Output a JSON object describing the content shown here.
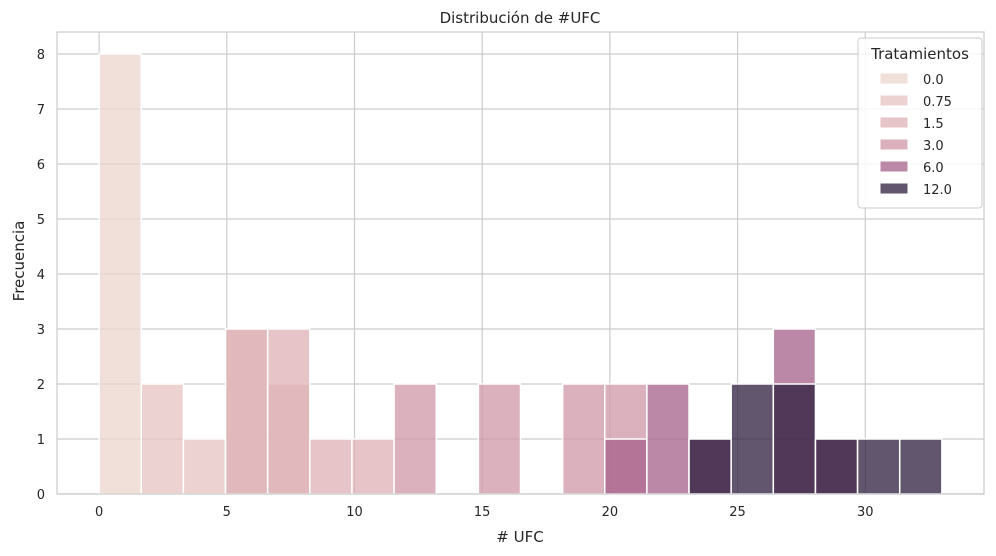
{
  "chart_data": {
    "type": "bar",
    "subtype": "stacked-histogram",
    "title": "Distribución de #UFC",
    "xlabel": "# UFC",
    "ylabel": "Frecuencia",
    "xlim": [
      -1.65,
      34.65
    ],
    "ylim": [
      0,
      8.4
    ],
    "xticks": [
      0,
      5,
      10,
      15,
      20,
      25,
      30
    ],
    "yticks": [
      0,
      1,
      2,
      3,
      4,
      5,
      6,
      7,
      8
    ],
    "grid": true,
    "legend": {
      "title": "Tratamientos",
      "position": "top-right"
    },
    "series": [
      {
        "name": "0.0",
        "color": "#ecd4cd",
        "alpha": 0.75,
        "bins": [
          {
            "x0": 0.0,
            "x1": 1.65,
            "count": 8
          }
        ]
      },
      {
        "name": "0.75",
        "color": "#e6c3c0",
        "alpha": 0.75,
        "bins": [
          {
            "x0": 1.65,
            "x1": 3.3,
            "count": 2
          },
          {
            "x0": 3.3,
            "x1": 4.95,
            "count": 1
          },
          {
            "x0": 4.95,
            "x1": 6.6,
            "count": 3
          },
          {
            "x0": 6.6,
            "x1": 8.25,
            "count": 2
          }
        ]
      },
      {
        "name": "1.5",
        "color": "#ddb0b5",
        "alpha": 0.75,
        "bins": [
          {
            "x0": 4.95,
            "x1": 6.6,
            "count": 3
          },
          {
            "x0": 6.6,
            "x1": 8.25,
            "count": 3
          },
          {
            "x0": 8.25,
            "x1": 9.9,
            "count": 1
          },
          {
            "x0": 9.9,
            "x1": 11.55,
            "count": 1
          }
        ]
      },
      {
        "name": "3.0",
        "color": "#cf97a8",
        "alpha": 0.75,
        "bins": [
          {
            "x0": 11.55,
            "x1": 13.2,
            "count": 2
          },
          {
            "x0": 14.85,
            "x1": 16.5,
            "count": 2
          },
          {
            "x0": 18.15,
            "x1": 19.8,
            "count": 2
          },
          {
            "x0": 19.8,
            "x1": 21.45,
            "count": 2
          }
        ]
      },
      {
        "name": "6.0",
        "color": "#a6608a",
        "alpha": 0.75,
        "bins": [
          {
            "x0": 19.8,
            "x1": 21.45,
            "count": 1
          },
          {
            "x0": 21.45,
            "x1": 23.1,
            "count": 2
          },
          {
            "x0": 23.1,
            "x1": 24.75,
            "count": 1
          },
          {
            "x0": 26.4,
            "x1": 28.05,
            "count": 3
          },
          {
            "x0": 28.05,
            "x1": 29.7,
            "count": 1
          }
        ]
      },
      {
        "name": "12.0",
        "color": "#2d1d3f",
        "alpha": 0.75,
        "bins": [
          {
            "x0": 23.1,
            "x1": 24.75,
            "count": 1
          },
          {
            "x0": 24.75,
            "x1": 26.4,
            "count": 2
          },
          {
            "x0": 26.4,
            "x1": 28.05,
            "count": 2
          },
          {
            "x0": 28.05,
            "x1": 29.7,
            "count": 1
          },
          {
            "x0": 29.7,
            "x1": 31.35,
            "count": 1
          },
          {
            "x0": 31.35,
            "x1": 33.0,
            "count": 1
          }
        ]
      }
    ]
  }
}
